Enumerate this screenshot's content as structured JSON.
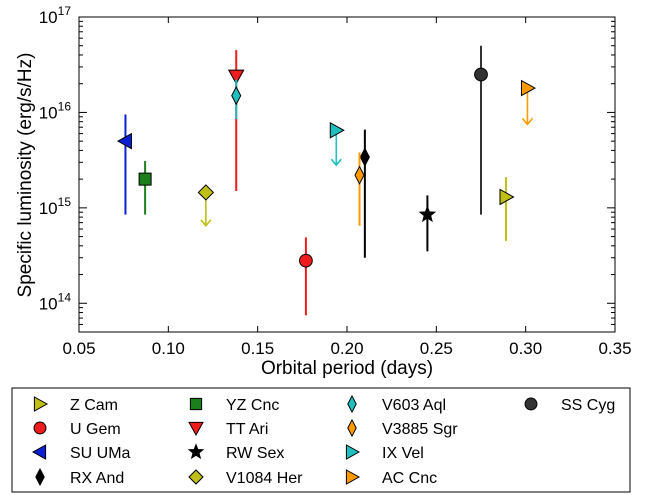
{
  "chart_data": {
    "type": "scatter",
    "title": "",
    "xlabel": "Orbital period (days)",
    "ylabel": "Specific luminosity (erg/s/Hz)",
    "xlim": [
      0.05,
      0.35
    ],
    "ylim": [
      50000000000000.0,
      1e+17
    ],
    "yscale": "log",
    "x_ticks": [
      "0.05",
      "0.10",
      "0.15",
      "0.20",
      "0.25",
      "0.30",
      "0.35"
    ],
    "y_ticks": [
      {
        "value": 100000000000000.0,
        "base": "10",
        "exp": "14"
      },
      {
        "value": 1000000000000000.0,
        "base": "10",
        "exp": "15"
      },
      {
        "value": 1e+16,
        "base": "10",
        "exp": "16"
      },
      {
        "value": 1e+17,
        "base": "10",
        "exp": "17"
      }
    ],
    "grid": false,
    "legend_position": "bottom",
    "series": [
      {
        "name": "Z Cam",
        "marker": "triangle-right",
        "color": "#bfbf16",
        "x": 0.289,
        "y": 1300000000000000.0,
        "y_low": 450000000000000.0,
        "y_high": 2100000000000000.0,
        "upper_limit": false
      },
      {
        "name": "U Gem",
        "marker": "circle",
        "color": "#ee1c1c",
        "x": 0.177,
        "y": 280000000000000.0,
        "y_low": 75000000000000.0,
        "y_high": 490000000000000.0,
        "upper_limit": false
      },
      {
        "name": "SU UMa",
        "marker": "triangle-left",
        "color": "#0b1fd6",
        "x": 0.076,
        "y": 5000000000000000.0,
        "y_low": 850000000000000.0,
        "y_high": 9500000000000000.0,
        "upper_limit": false
      },
      {
        "name": "RX And",
        "marker": "thin-diamond",
        "color": "#000000",
        "x": 0.21,
        "y": 3400000000000000.0,
        "y_low": 300000000000000.0,
        "y_high": 6600000000000000.0,
        "upper_limit": false
      },
      {
        "name": "YZ Cnc",
        "marker": "square",
        "color": "#1b7f1b",
        "x": 0.087,
        "y": 2000000000000000.0,
        "y_low": 850000000000000.0,
        "y_high": 3100000000000000.0,
        "upper_limit": false
      },
      {
        "name": "TT Ari",
        "marker": "triangle-down",
        "color": "#ee1c1c",
        "x": 0.138,
        "y": 2.4e+16,
        "y_low": 1500000000000000.0,
        "y_high": 4.5e+16,
        "upper_limit": false
      },
      {
        "name": "RW Sex",
        "marker": "star",
        "color": "#000000",
        "x": 0.245,
        "y": 850000000000000.0,
        "y_low": 350000000000000.0,
        "y_high": 1350000000000000.0,
        "upper_limit": false
      },
      {
        "name": "V1084 Her",
        "marker": "diamond",
        "color": "#bfbf16",
        "x": 0.121,
        "y": 1450000000000000.0,
        "upper_limit": true,
        "limit_to": 650000000000000.0
      },
      {
        "name": "V603 Aql",
        "marker": "thin-diamond",
        "color": "#1fbfbf",
        "x": 0.138,
        "y": 1.5e+16,
        "y_low": 8500000000000000.0,
        "y_high": 2.2e+16,
        "upper_limit": false
      },
      {
        "name": "V3885 Sgr",
        "marker": "thin-diamond",
        "color": "#ff9900",
        "x": 0.207,
        "y": 2200000000000000.0,
        "y_low": 650000000000000.0,
        "y_high": 3800000000000000.0,
        "upper_limit": false
      },
      {
        "name": "IX Vel",
        "marker": "triangle-right",
        "color": "#1fbfbf",
        "x": 0.194,
        "y": 6500000000000000.0,
        "upper_limit": true,
        "limit_to": 2800000000000000.0
      },
      {
        "name": "AC Cnc",
        "marker": "triangle-right",
        "color": "#ff9900",
        "x": 0.301,
        "y": 1.8e+16,
        "upper_limit": true,
        "limit_to": 7500000000000000.0
      },
      {
        "name": "SS Cyg",
        "marker": "circle",
        "color": "#333333",
        "x": 0.275,
        "y": 2.5e+16,
        "y_low": 850000000000000.0,
        "y_high": 5e+16,
        "upper_limit": false
      }
    ]
  }
}
